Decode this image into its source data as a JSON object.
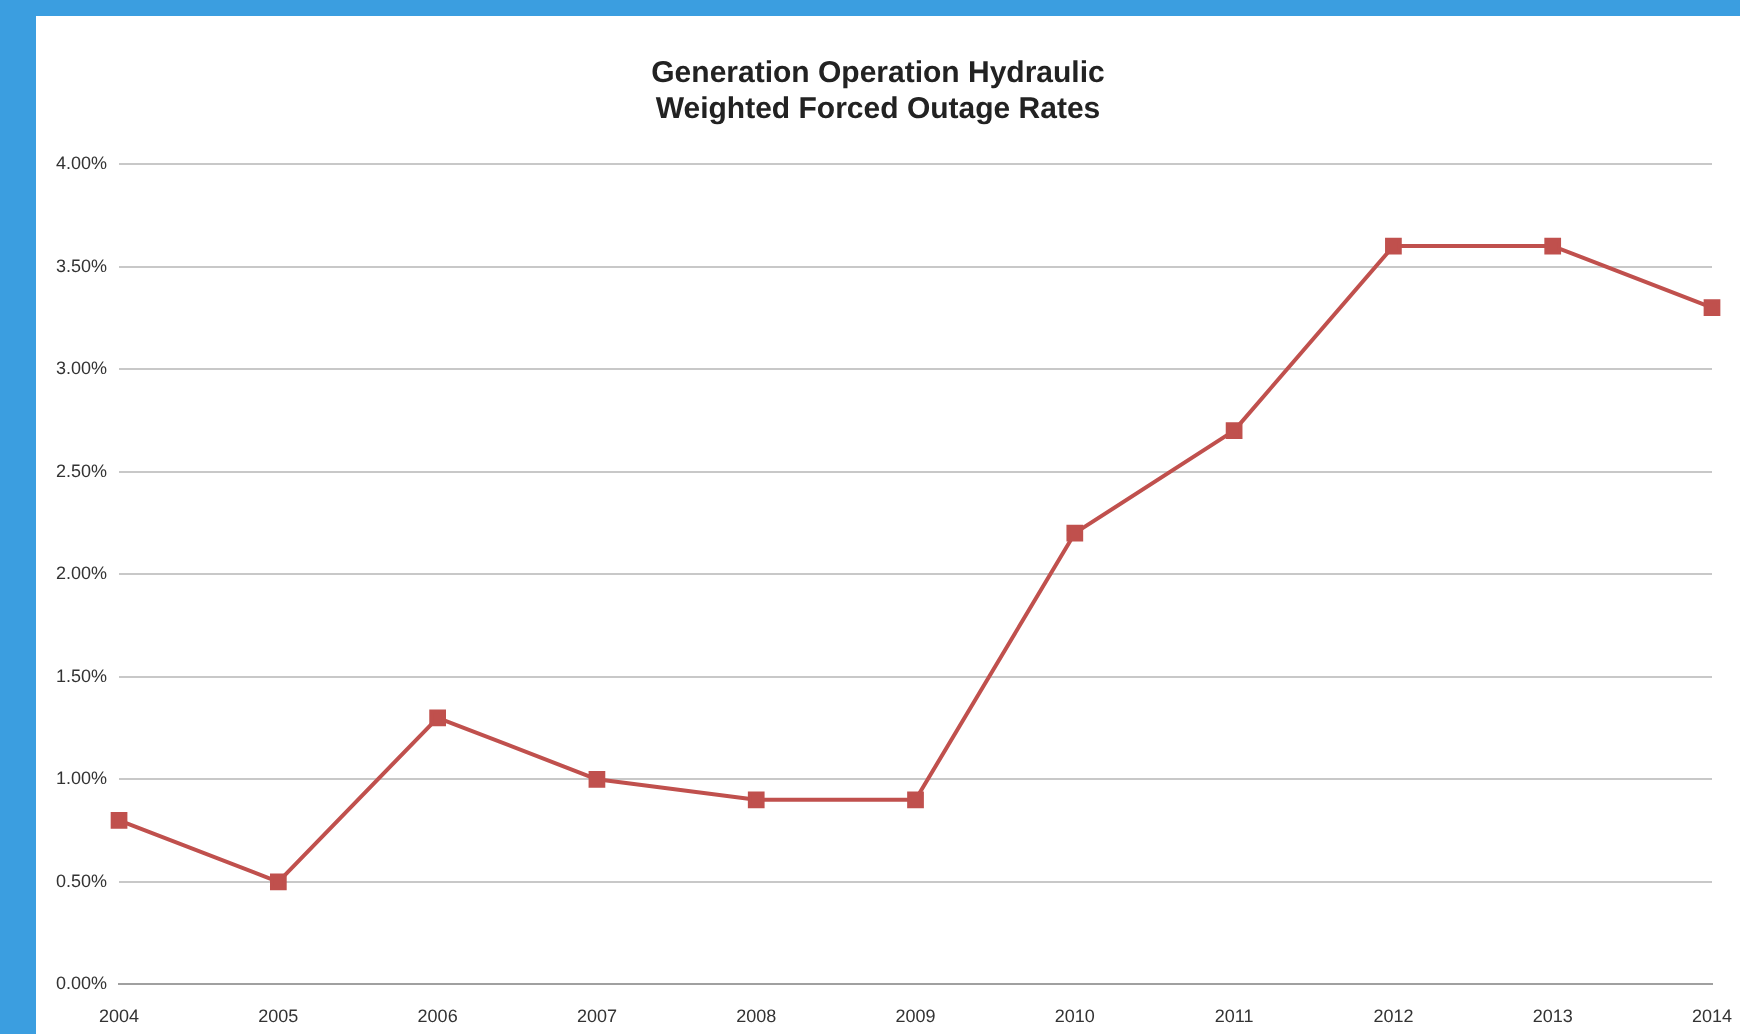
{
  "chart_data": {
    "type": "line",
    "title": [
      "Generation Operation Hydraulic",
      "Weighted Forced Outage Rates"
    ],
    "categories": [
      "2004",
      "2005",
      "2006",
      "2007",
      "2008",
      "2009",
      "2010",
      "2011",
      "2012",
      "2013",
      "2014"
    ],
    "series": [
      {
        "color": "#c0504d",
        "values": [
          0.8,
          0.5,
          1.3,
          1.0,
          0.9,
          0.9,
          2.2,
          2.7,
          3.6,
          3.6,
          3.3
        ]
      }
    ],
    "ylim": [
      0,
      4
    ],
    "yticks": [
      {
        "value": 0,
        "label": "0.00%"
      },
      {
        "value": 0.5,
        "label": "0.50%"
      },
      {
        "value": 1,
        "label": "1.00%"
      },
      {
        "value": 1.5,
        "label": "1.50%"
      },
      {
        "value": 2,
        "label": "2.00%"
      },
      {
        "value": 2.5,
        "label": "2.50%"
      },
      {
        "value": 3,
        "label": "3.00%"
      },
      {
        "value": 3.5,
        "label": "3.50%"
      },
      {
        "value": 4,
        "label": "4.00%"
      }
    ],
    "grid": "y",
    "legend": false,
    "marker": "square",
    "line_style": "solid"
  }
}
